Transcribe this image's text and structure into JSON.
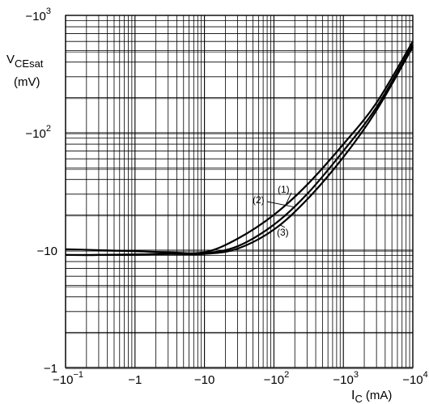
{
  "chart_data": {
    "type": "line",
    "x_scale": "log",
    "y_scale": "log",
    "xlim": [
      -0.1,
      -10000
    ],
    "ylim": [
      -1,
      -1000
    ],
    "grid": true,
    "ylabel": {
      "main": "V",
      "sub": "CEsat",
      "unit": "(mV)"
    },
    "xlabel": {
      "main": "I",
      "sub": "C",
      "unit": "(mA)"
    },
    "x_ticks": [
      {
        "label": "−10",
        "sup": "−1",
        "value": -0.1
      },
      {
        "label": "−1",
        "sup": "",
        "value": -1
      },
      {
        "label": "−10",
        "sup": "",
        "value": -10
      },
      {
        "label": "−10",
        "sup": "2",
        "value": -100
      },
      {
        "label": "−10",
        "sup": "3",
        "value": -1000
      },
      {
        "label": "−10",
        "sup": "4",
        "value": -10000
      }
    ],
    "y_ticks": [
      {
        "label": "−1",
        "sup": "",
        "value": -1
      },
      {
        "label": "−10",
        "sup": "",
        "value": -10
      },
      {
        "label": "−10",
        "sup": "2",
        "value": -100
      },
      {
        "label": "−10",
        "sup": "3",
        "value": -1000
      }
    ],
    "series": [
      {
        "name": "(1)",
        "x": [
          -0.1,
          -0.3,
          -1,
          -3,
          -10,
          -30,
          -100,
          -300,
          -1000,
          -3000,
          -10000
        ],
        "y": [
          -10.2,
          -10.0,
          -9.8,
          -9.6,
          -9.6,
          -12.5,
          -20,
          -36,
          -80,
          -180,
          -600
        ]
      },
      {
        "name": "(2)",
        "x": [
          -0.1,
          -0.3,
          -1,
          -3,
          -10,
          -30,
          -100,
          -300,
          -1000,
          -3000,
          -10000
        ],
        "y": [
          -9.1,
          -9.1,
          -9.2,
          -9.3,
          -9.4,
          -10.8,
          -16.5,
          -30,
          -70,
          -165,
          -560
        ]
      },
      {
        "name": "(3)",
        "x": [
          -0.1,
          -0.3,
          -1,
          -3,
          -10,
          -30,
          -100,
          -300,
          -1000,
          -3000,
          -10000
        ],
        "y": [
          -9.1,
          -9.1,
          -9.2,
          -9.3,
          -9.3,
          -10.3,
          -15,
          -27,
          -62,
          -155,
          -540
        ]
      }
    ]
  }
}
